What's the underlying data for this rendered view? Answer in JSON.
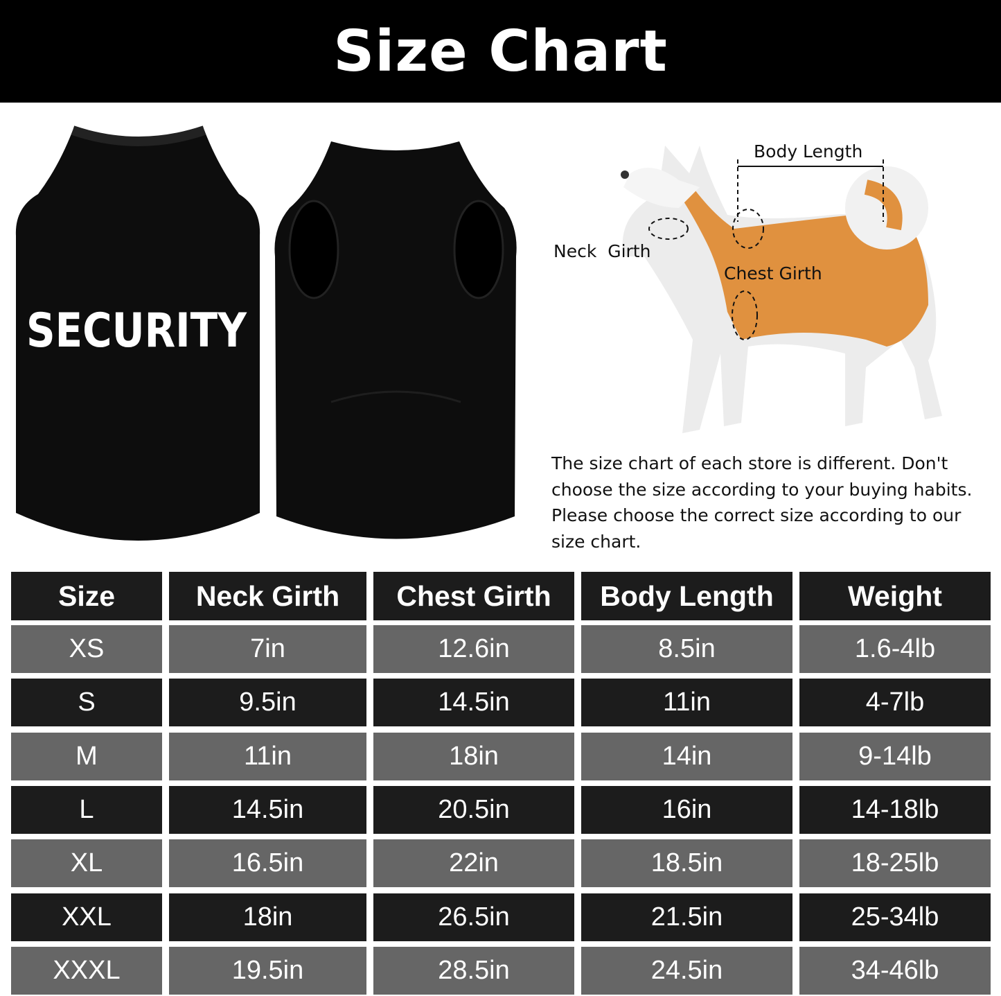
{
  "title": "Size Chart",
  "shirt_print": "SECURITY",
  "diagram_labels": {
    "body_length": "Body Length",
    "neck_girth": "Neck  Girth",
    "chest_girth": "Chest Girth"
  },
  "note": "The size chart of each store is different. Don't choose the size according to your buying habits. Please choose the correct size according to our size chart.",
  "colors": {
    "header_bg": "#000000",
    "row_dark": "#1c1c1c",
    "row_gray": "#666666",
    "dog_orange": "#e0913f"
  },
  "table": {
    "headers": [
      "Size",
      "Neck Girth",
      "Chest Girth",
      "Body Length",
      "Weight"
    ],
    "rows": [
      [
        "XS",
        "7in",
        "12.6in",
        "8.5in",
        "1.6-4lb"
      ],
      [
        "S",
        "9.5in",
        "14.5in",
        "11in",
        "4-7lb"
      ],
      [
        "M",
        "11in",
        "18in",
        "14in",
        "9-14lb"
      ],
      [
        "L",
        "14.5in",
        "20.5in",
        "16in",
        "14-18lb"
      ],
      [
        "XL",
        "16.5in",
        "22in",
        "18.5in",
        "18-25lb"
      ],
      [
        "XXL",
        "18in",
        "26.5in",
        "21.5in",
        "25-34lb"
      ],
      [
        "XXXL",
        "19.5in",
        "28.5in",
        "24.5in",
        "34-46lb"
      ]
    ]
  }
}
